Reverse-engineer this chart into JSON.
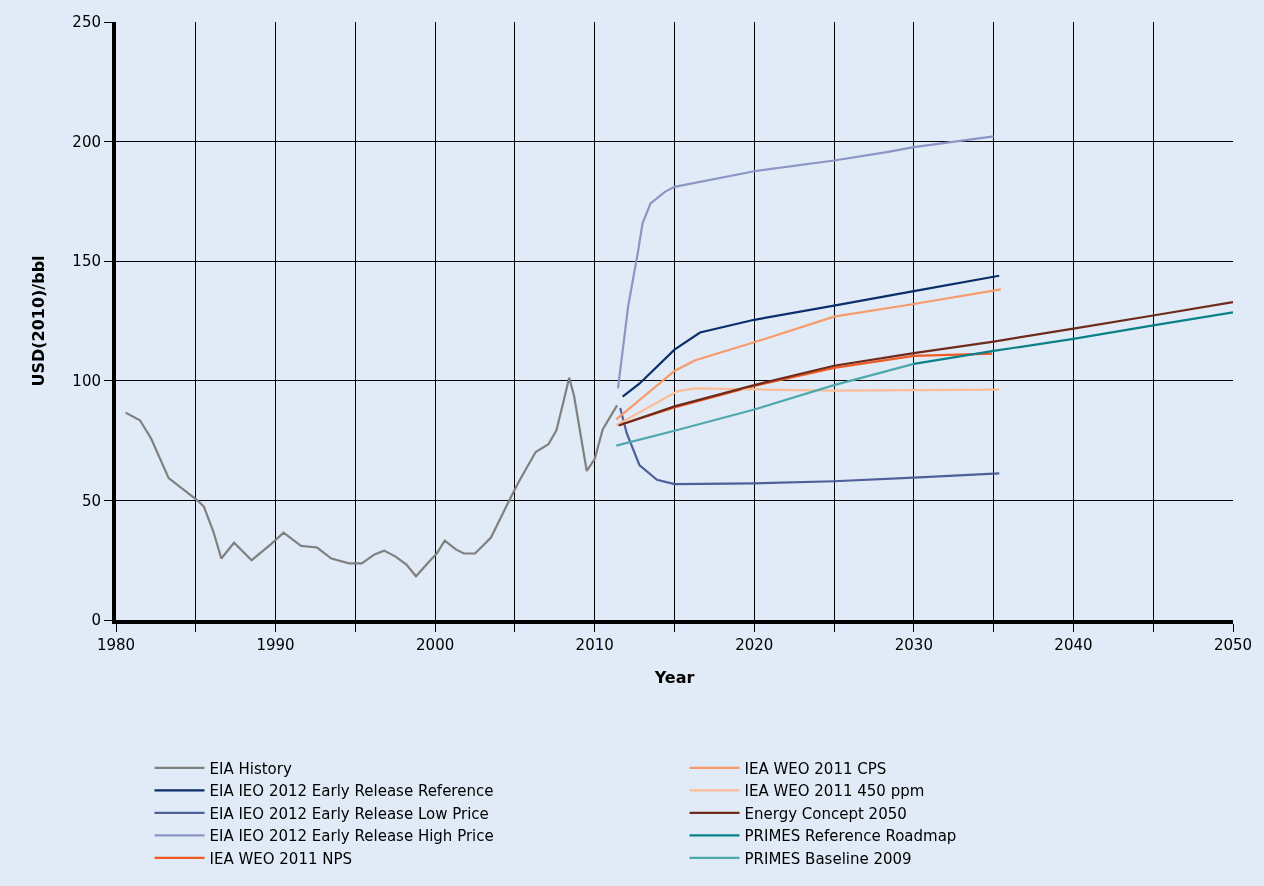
{
  "chart_data": {
    "type": "line",
    "xlabel": "Year",
    "ylabel": "USD(2010)/bbl",
    "xlim": [
      1980,
      2050
    ],
    "ylim": [
      0,
      250
    ],
    "xticks": [
      1980,
      {
        "value": 1985,
        "label": null
      },
      1990,
      {
        "value": 1995,
        "label": null
      },
      2000,
      {
        "value": 2005,
        "label": null
      },
      2010,
      {
        "value": 2015,
        "label": null
      },
      2020,
      {
        "value": 2025,
        "label": null
      },
      2030,
      {
        "value": 2035,
        "label": null
      },
      2040,
      {
        "value": 2045,
        "label": null
      },
      2050
    ],
    "yticks": [
      0,
      50,
      100,
      150,
      200,
      250
    ],
    "grid": true,
    "legend": "bottom",
    "marker": "none",
    "line_style": "solid",
    "series": [
      {
        "name": "EIA History",
        "color": "#808080",
        "x": [
          1980.6,
          1981.5,
          1982.2,
          1983.3,
          1985.1,
          1985.5,
          1986.1,
          1986.6,
          1987.4,
          1988.5,
          1989.7,
          1990.5,
          1991.6,
          1992.6,
          1993.5,
          1994.6,
          1995.4,
          1996.2,
          1996.8,
          1997.5,
          1998.2,
          1998.8,
          1999.7,
          2000.1,
          2000.6,
          2001.3,
          2001.8,
          2002.5,
          2003.5,
          2004.6,
          2005.2,
          2006.3,
          2007.1,
          2007.6,
          2008.0,
          2008.4,
          2008.7,
          2009.5,
          2010.0,
          2010.5,
          2011.4
        ],
        "values": [
          86.7,
          83.5,
          75.9,
          59.3,
          50.0,
          47.5,
          37.0,
          25.7,
          32.3,
          25.0,
          31.6,
          36.5,
          31.0,
          30.3,
          25.7,
          23.7,
          23.7,
          27.4,
          29.0,
          26.6,
          23.2,
          18.3,
          25.0,
          27.8,
          33.2,
          29.5,
          27.8,
          27.8,
          34.5,
          49.4,
          57.3,
          70.2,
          73.5,
          79.3,
          90.1,
          101.3,
          93.9,
          62.3,
          67.3,
          79.7,
          89.7
        ]
      },
      {
        "name": "EIA IEO 2012 Early Release Reference",
        "color": "#0b2f6b",
        "x": [
          2011.75,
          2012.8,
          2015,
          2016.6,
          2020,
          2025,
          2030,
          2035.35
        ],
        "values": [
          93.4,
          98.8,
          113.0,
          120.2,
          125.5,
          131.4,
          137.5,
          143.9
        ]
      },
      {
        "name": "EIA IEO 2012 Early Release Low Price",
        "color": "#4f5f9a",
        "x": [
          2011.6,
          2012.0,
          2012.8,
          2013.9,
          2015,
          2020,
          2025,
          2030,
          2035.35
        ],
        "values": [
          88.6,
          78.2,
          64.8,
          58.6,
          56.8,
          57.1,
          58.0,
          59.5,
          61.3
        ]
      },
      {
        "name": "EIA IEO 2012 Early Release High Price",
        "color": "#8a96c4",
        "x": [
          2011.46,
          2012.1,
          2012.7,
          2013.0,
          2013.5,
          2014.4,
          2015,
          2020,
          2025,
          2028.3,
          2030,
          2035
        ],
        "values": [
          96.8,
          131.4,
          153.5,
          165.9,
          174.2,
          179.0,
          181.1,
          187.6,
          192.1,
          195.6,
          197.7,
          202.2
        ]
      },
      {
        "name": "IEA WEO 2011 NPS",
        "color": "#f05a23",
        "x": [
          2011.5,
          2015,
          2020,
          2025,
          2030,
          2034.9
        ],
        "values": [
          81.4,
          88.9,
          97.9,
          105.4,
          110.4,
          111.4
        ]
      },
      {
        "name": "IEA WEO 2011 CPS",
        "color": "#f79b6a",
        "x": [
          2011.35,
          2015,
          2016.3,
          2020,
          2025,
          2030,
          2035.45
        ],
        "values": [
          83.9,
          104.1,
          108.6,
          116.1,
          126.8,
          132.1,
          138.2
        ]
      },
      {
        "name": "IEA WEO 2011 450 ppm",
        "color": "#fbbd97",
        "x": [
          2011.35,
          2015.2,
          2016.3,
          2020,
          2025,
          2035.35
        ],
        "values": [
          81.4,
          95.7,
          96.8,
          96.4,
          95.9,
          96.3
        ]
      },
      {
        "name": "Energy Concept 2050",
        "color": "#6e2b1c",
        "x": [
          2011.5,
          2015,
          2020,
          2025,
          2030,
          2035,
          2040,
          2045,
          2050
        ],
        "values": [
          81.3,
          89.3,
          98.2,
          106.3,
          111.6,
          116.4,
          121.8,
          127.3,
          132.9
        ]
      },
      {
        "name": "PRIMES Reference Roadmap",
        "color": "#0a8088",
        "x": [
          2030,
          2035,
          2040,
          2045,
          2050
        ],
        "values": [
          107.1,
          112.5,
          117.5,
          123.2,
          128.6
        ]
      },
      {
        "name": "PRIMES Baseline 2009",
        "color": "#4fa8ad",
        "x": [
          2011.35,
          2015,
          2020,
          2025,
          2030
        ],
        "values": [
          72.9,
          79.1,
          88.0,
          98.2,
          107.1
        ]
      }
    ]
  }
}
